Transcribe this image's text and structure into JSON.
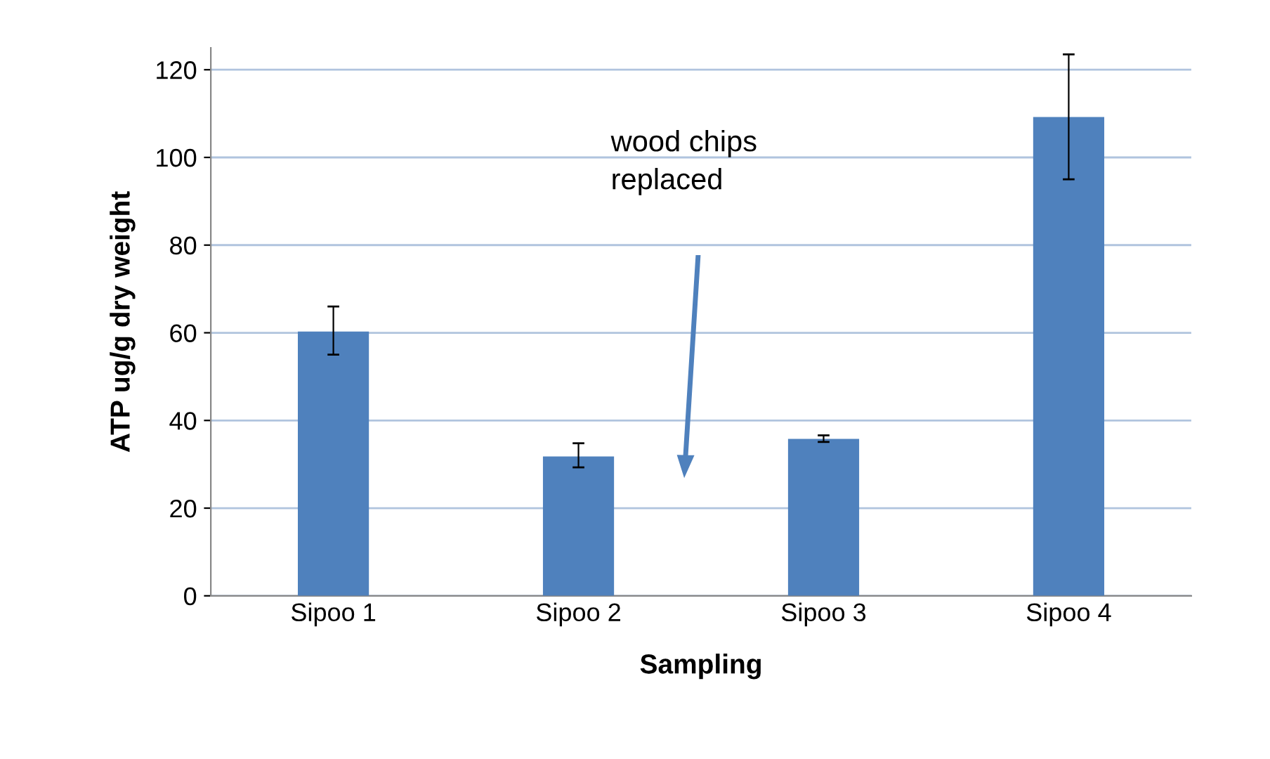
{
  "chart_data": {
    "type": "bar",
    "xlabel": "Sampling",
    "ylabel": "ATP ug/g dry weight",
    "categories": [
      "Sipoo 1",
      "Sipoo 2",
      "Sipoo 3",
      "Sipoo 4"
    ],
    "values": [
      60.3,
      31.8,
      35.8,
      109.2
    ],
    "errors": [
      [
        55,
        66
      ],
      [
        29.3,
        34.8
      ],
      [
        35.1,
        36.6
      ],
      [
        95,
        123.5
      ]
    ],
    "color": "#4f81bd",
    "ylim": [
      0,
      125
    ],
    "yticks": [
      0,
      20,
      40,
      60,
      80,
      100,
      120
    ],
    "grid": "y",
    "annotations": [
      "wood chips\nreplaced"
    ]
  }
}
